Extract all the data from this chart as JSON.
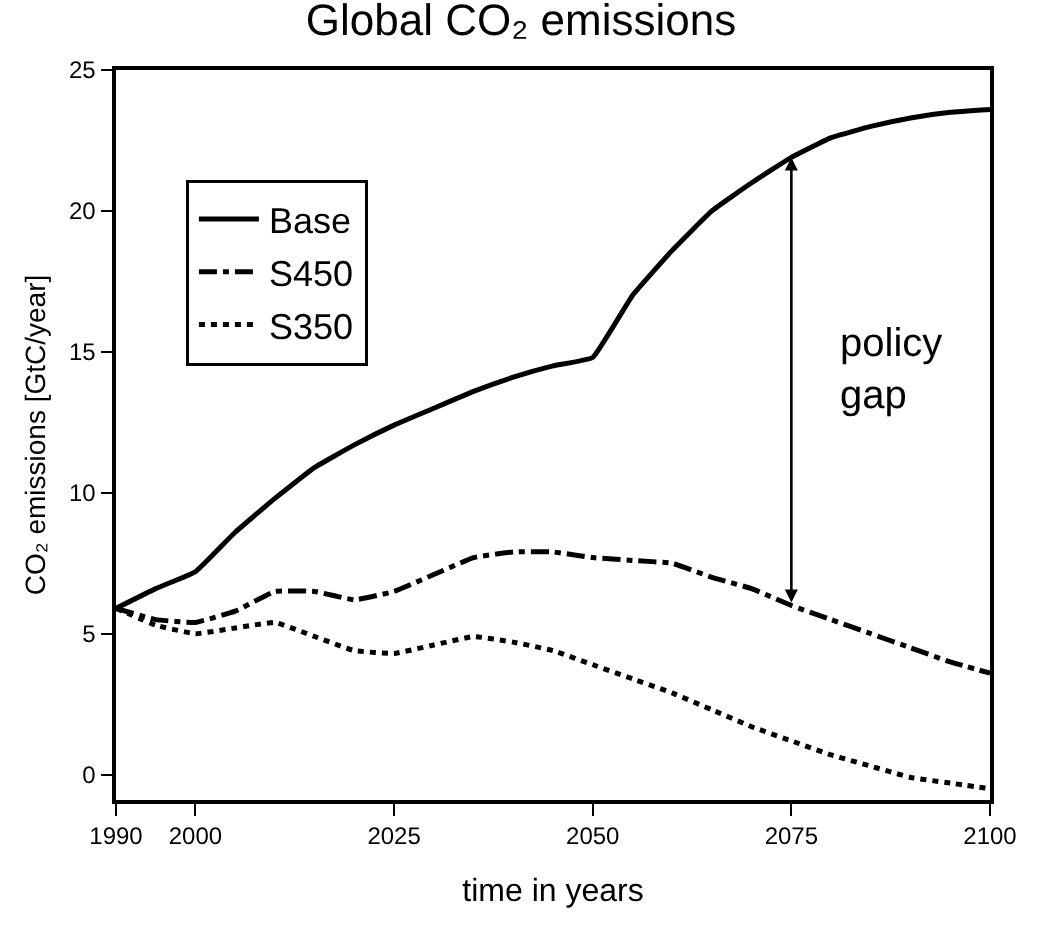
{
  "chart_data": {
    "type": "line",
    "title": "Global CO₂ emissions",
    "xlabel": "time in years",
    "ylabel": "CO₂ emissions [GtC/year]",
    "x": [
      1990,
      1995,
      2000,
      2005,
      2010,
      2015,
      2020,
      2025,
      2030,
      2035,
      2040,
      2045,
      2050,
      2055,
      2060,
      2065,
      2070,
      2075,
      2080,
      2085,
      2090,
      2095,
      2100
    ],
    "series": [
      {
        "name": "Base",
        "color": "#000000",
        "line_style": "solid",
        "values": [
          5.9,
          6.6,
          7.2,
          8.6,
          9.8,
          10.9,
          11.7,
          12.4,
          13.0,
          13.6,
          14.1,
          14.5,
          14.8,
          17.0,
          18.6,
          20.0,
          21.0,
          21.9,
          22.6,
          23.0,
          23.3,
          23.5,
          23.6
        ]
      },
      {
        "name": "S450",
        "color": "#000000",
        "line_style": "dashdot",
        "values": [
          5.9,
          5.5,
          5.4,
          5.8,
          6.5,
          6.5,
          6.2,
          6.5,
          7.1,
          7.7,
          7.9,
          7.9,
          7.7,
          7.6,
          7.5,
          7.0,
          6.6,
          6.0,
          5.5,
          5.0,
          4.5,
          4.0,
          3.6
        ]
      },
      {
        "name": "S350",
        "color": "#000000",
        "line_style": "dotted",
        "values": [
          5.9,
          5.3,
          5.0,
          5.2,
          5.4,
          4.9,
          4.4,
          4.3,
          4.6,
          4.9,
          4.7,
          4.4,
          3.9,
          3.4,
          2.9,
          2.3,
          1.7,
          1.2,
          0.7,
          0.3,
          -0.1,
          -0.3,
          -0.5
        ]
      }
    ],
    "annotations": [
      "policy\ngap"
    ],
    "xlim": [
      1990,
      2100
    ],
    "xticks": [
      1990,
      2000,
      2025,
      2050,
      2075,
      2100
    ],
    "ylim": [
      -0.9,
      25
    ],
    "yticks": [
      0,
      5,
      10,
      15,
      20,
      25
    ],
    "legend": "top left",
    "marker": "none"
  }
}
